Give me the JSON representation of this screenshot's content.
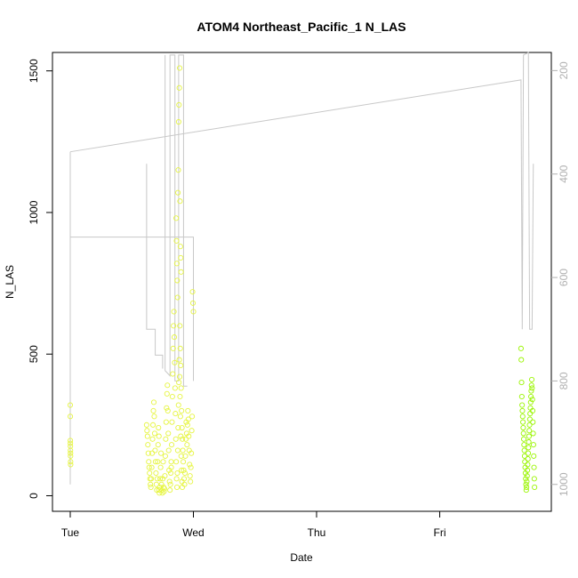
{
  "chart_data": {
    "type": "scatter",
    "title": "ATOM4 Northeast_Pacific_1 N_LAS",
    "xlabel": "Date",
    "ylabel": "N_LAS",
    "x_ticks": [
      "Tue",
      "Wed",
      "Thu",
      "Fri"
    ],
    "x_range_days": [
      0,
      3.85
    ],
    "y_ticks": [
      0,
      500,
      1000,
      1500
    ],
    "ylim": [
      -55,
      1565
    ],
    "right_axis": {
      "ticks": [
        200,
        400,
        600,
        800,
        1000
      ],
      "ylim_reversed": [
        1052,
        165
      ]
    },
    "colors": {
      "points_left": "#e6f542",
      "points_right": "#9af500",
      "line": "#c8c8c8",
      "axis": "#000000"
    },
    "series": [
      {
        "kind": "points",
        "segments": [
          {
            "x_start": 0.0,
            "x_end": 0.003,
            "values": [
              320,
              280,
              195,
              185,
              175,
              160,
              150,
              140,
              120,
              110
            ]
          },
          {
            "x_start": 0.62,
            "x_end": 0.72,
            "values": [
              250,
              230,
              210,
              180,
              150,
              120,
              100,
              80,
              60,
              40,
              30,
              60,
              100,
              150,
              200,
              250,
              300,
              330,
              280,
              220,
              160,
              120,
              80,
              40,
              20,
              60,
              120,
              180,
              240,
              210
            ]
          },
          {
            "x_start": 0.72,
            "x_end": 0.82,
            "values": [
              20,
              10,
              30,
              60,
              100,
              150,
              40,
              20,
              10,
              60,
              120,
              30,
              15,
              25,
              70,
              140,
              200,
              260,
              310,
              360,
              390,
              300,
              220,
              160,
              90,
              50,
              20,
              40,
              80,
              120
            ]
          },
          {
            "x_start": 0.82,
            "x_end": 0.91,
            "values": [
              100,
              180,
              260,
              350,
              430,
              520,
              600,
              650,
              560,
              470,
              380,
              290,
              200,
              120,
              60,
              30,
              80,
              160,
              240,
              320,
              400,
              480,
              420,
              350,
              280,
              210,
              140,
              90,
              50,
              30
            ]
          },
          {
            "x_start": 0.86,
            "x_end": 0.9,
            "values": [
              980,
              900,
              820,
              760,
              700,
              1070,
              1150,
              1320,
              1380,
              1440,
              1510,
              1040,
              880,
              840,
              790
            ]
          },
          {
            "x_start": 0.89,
            "x_end": 1.0,
            "values": [
              600,
              520,
              460,
              380,
              300,
              240,
              200,
              160,
              120,
              90,
              60,
              40,
              80,
              140,
              200,
              260,
              220,
              180,
              250,
              300,
              270,
              210,
              160,
              110,
              70,
              50,
              100,
              150,
              230,
              280,
              720,
              680,
              650
            ]
          }
        ]
      },
      {
        "kind": "points",
        "segments": [
          {
            "x_start": 3.66,
            "x_end": 3.77,
            "values": [
              520,
              480,
              400,
              350,
              320,
              300,
              280,
              260,
              240,
              220,
              200,
              180,
              160,
              140,
              120,
              100,
              80,
              60,
              40,
              20,
              30,
              50,
              70,
              90,
              110,
              130,
              150,
              170,
              190,
              210,
              230,
              250,
              270,
              290,
              310,
              330,
              350,
              370,
              390,
              410,
              380,
              340,
              300,
              260,
              220,
              180,
              140,
              100,
              60,
              30
            ]
          }
        ]
      },
      {
        "kind": "line",
        "axis": "right",
        "segments": [
          [
            [
              0,
              357
            ],
            [
              0,
              1000
            ],
            [
              0,
              522
            ],
            [
              1.0,
              522
            ],
            [
              1.0,
              800
            ]
          ],
          [
            [
              0,
              357
            ],
            [
              3.66,
              218
            ],
            [
              3.67,
              700
            ],
            [
              3.68,
              170
            ],
            [
              3.72,
              165
            ],
            [
              3.73,
              700
            ],
            [
              3.75,
              700
            ],
            [
              3.76,
              380
            ]
          ],
          [
            [
              0.62,
              380
            ],
            [
              0.62,
              700
            ],
            [
              0.69,
              700
            ],
            [
              0.69,
              750
            ],
            [
              0.75,
              750
            ],
            [
              0.75,
              776
            ]
          ],
          [
            [
              0.77,
              170
            ],
            [
              0.77,
              780
            ],
            [
              0.81,
              790
            ],
            [
              0.81,
              170
            ],
            [
              0.85,
              170
            ],
            [
              0.85,
              800
            ],
            [
              0.88,
              800
            ],
            [
              0.88,
              170
            ],
            [
              0.92,
              170
            ],
            [
              0.92,
              810
            ],
            [
              0.95,
              810
            ]
          ]
        ]
      }
    ]
  }
}
